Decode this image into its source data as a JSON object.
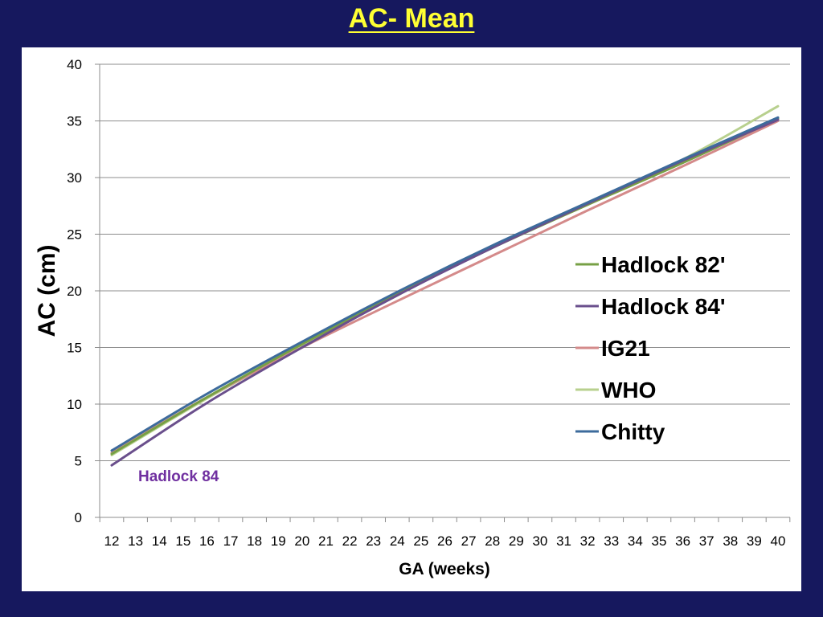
{
  "slide": {
    "title": "AC- Mean",
    "background": "#16185e",
    "title_color": "#ffff33"
  },
  "chart_data": {
    "type": "line",
    "title": "",
    "xlabel": "GA (weeks)",
    "ylabel": "AC (cm)",
    "xlim": [
      12,
      40
    ],
    "ylim": [
      0,
      40
    ],
    "yticks": [
      0,
      5,
      10,
      15,
      20,
      25,
      30,
      35,
      40
    ],
    "xticks": [
      12,
      13,
      14,
      15,
      16,
      17,
      18,
      19,
      20,
      21,
      22,
      23,
      24,
      25,
      26,
      27,
      28,
      29,
      30,
      31,
      32,
      33,
      34,
      35,
      36,
      37,
      38,
      39,
      40
    ],
    "grid": true,
    "legend_position": "right",
    "x": [
      12,
      16,
      20,
      24,
      28,
      32,
      36,
      40
    ],
    "series": [
      {
        "name": "Hadlock 82'",
        "color": "#77a045",
        "values": [
          5.6,
          10.6,
          15.3,
          19.7,
          23.8,
          27.6,
          31.3,
          35.2
        ]
      },
      {
        "name": "Hadlock 84'",
        "color": "#6a4f8c",
        "values": [
          4.6,
          10.1,
          15.0,
          19.6,
          23.8,
          27.7,
          31.5,
          35.1
        ]
      },
      {
        "name": "IG21",
        "color": "#d48a8a",
        "values": [
          5.7,
          10.6,
          15.0,
          19.1,
          23.1,
          27.1,
          31.0,
          35.0
        ]
      },
      {
        "name": "WHO",
        "color": "#b8d08e",
        "values": [
          5.5,
          10.5,
          15.1,
          19.6,
          23.9,
          27.8,
          31.6,
          36.3
        ]
      },
      {
        "name": "Chitty",
        "color": "#3d6b9c",
        "values": [
          5.9,
          10.9,
          15.5,
          19.9,
          24.0,
          27.8,
          31.6,
          35.3
        ]
      }
    ],
    "annotations": [
      {
        "text": "Hadlock 84",
        "color": "#7030a0",
        "x": 13.6,
        "y": 3.7
      }
    ]
  }
}
